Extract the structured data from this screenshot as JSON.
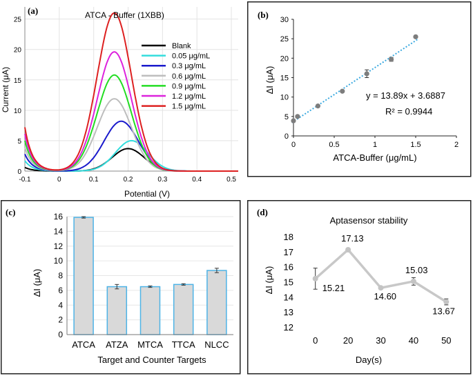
{
  "chart_data": [
    {
      "panel": "(a)",
      "type": "line",
      "title": "ATCA - Buffer (1XBB)",
      "xlabel": "Potential (V)",
      "ylabel": "Current (μA)",
      "xlim": [
        -0.1,
        0.52
      ],
      "ylim": [
        0,
        27
      ],
      "xticks": [
        "-0.1",
        "0",
        "0.1",
        "0.2",
        "0.3",
        "0.4",
        "0.5"
      ],
      "yticks": [
        "0",
        "5",
        "10",
        "15",
        "20",
        "25"
      ],
      "series": [
        {
          "name": "Blank",
          "color": "#000000",
          "peak_x": 0.2,
          "peak": 3.7
        },
        {
          "name": "0.05 μg/mL",
          "color": "#33dddd",
          "peak_x": 0.21,
          "peak": 5.0
        },
        {
          "name": "0.3 μg/mL",
          "color": "#1a1acc",
          "peak_x": 0.18,
          "peak": 8.2
        },
        {
          "name": "0.6 μg/mL",
          "color": "#bdbdbd",
          "peak_x": 0.16,
          "peak": 11.9
        },
        {
          "name": "0.9 μg/mL",
          "color": "#22dd22",
          "peak_x": 0.16,
          "peak": 15.8
        },
        {
          "name": "1.2 μg/mL",
          "color": "#dd22dd",
          "peak_x": 0.16,
          "peak": 19.6
        },
        {
          "name": "1.5 μg/mL",
          "color": "#dd2020",
          "peak_x": 0.16,
          "peak": 26.0
        }
      ]
    },
    {
      "panel": "(b)",
      "type": "scatter",
      "xlabel": "ATCA-Buffer (μg/mL)",
      "ylabel": "ΔI (μA)",
      "xlim": [
        0,
        2
      ],
      "ylim": [
        0,
        30
      ],
      "xticks": [
        "0",
        "0.5",
        "1",
        "1.5",
        "2"
      ],
      "yticks": [
        "0",
        "5",
        "10",
        "15",
        "20",
        "25",
        "30"
      ],
      "x": [
        0,
        0.05,
        0.3,
        0.6,
        0.9,
        1.2,
        1.5
      ],
      "y": [
        3.9,
        5.0,
        7.7,
        11.5,
        16.0,
        19.7,
        25.5
      ],
      "errors": [
        0,
        0,
        0,
        0,
        1.0,
        0.5,
        0
      ],
      "fit": {
        "slope": 13.89,
        "intercept": 3.6887
      },
      "equation": "y = 13.89x + 3.6887",
      "r2": "R² = 0.9944"
    },
    {
      "panel": "(c)",
      "type": "bar",
      "xlabel": "Target and Counter Targets",
      "ylabel": "ΔI (μA)",
      "ylim": [
        0,
        16
      ],
      "yticks": [
        "0",
        "2",
        "4",
        "6",
        "8",
        "10",
        "12",
        "14",
        "16"
      ],
      "categories": [
        "ATCA",
        "ATZA",
        "MTCA",
        "TTCA",
        "NLCC"
      ],
      "values": [
        15.9,
        6.5,
        6.5,
        6.8,
        8.7
      ],
      "errors": [
        0.1,
        0.3,
        0.1,
        0.1,
        0.3
      ]
    },
    {
      "panel": "(d)",
      "type": "line",
      "title": "Aptasensor stability",
      "xlabel": "Day(s)",
      "ylabel": "ΔI (μA)",
      "ylim": [
        12,
        18
      ],
      "yticks": [
        "12",
        "13",
        "14",
        "15",
        "16",
        "17",
        "18"
      ],
      "categories": [
        "0",
        "20",
        "30",
        "40",
        "50"
      ],
      "values": [
        15.21,
        17.13,
        14.6,
        15.03,
        13.67
      ],
      "labels": [
        "15.21",
        "17.13",
        "14.60",
        "15.03",
        "13.67"
      ],
      "errors": [
        0.7,
        0,
        0,
        0.25,
        0.2
      ]
    }
  ]
}
